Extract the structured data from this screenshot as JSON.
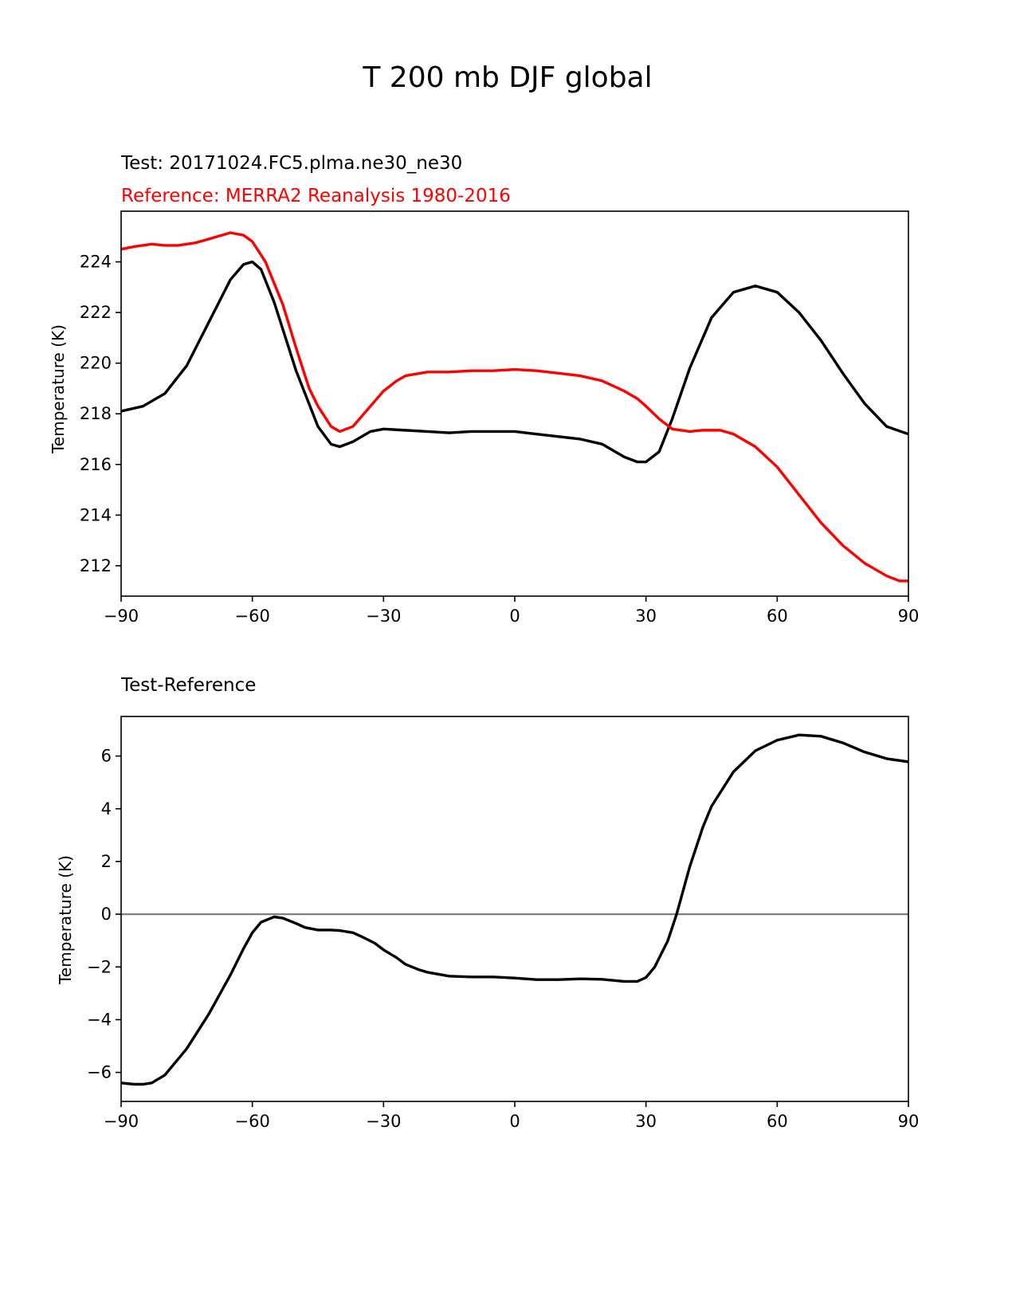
{
  "figure": {
    "title": "T 200 mb DJF global"
  },
  "colors": {
    "test": "#000000",
    "reference": "#ff0000",
    "zero_line": "#808080"
  },
  "chart_data": [
    {
      "type": "line",
      "id": "top",
      "title_test": "Test: 20171024.FC5.plma.ne30_ne30",
      "title_reference": "Reference: MERRA2 Reanalysis 1980-2016",
      "xlabel": "",
      "ylabel": "Temperature (K)",
      "xlim": [
        -90,
        90
      ],
      "ylim": [
        210.8,
        226.0
      ],
      "xticks": [
        -90,
        -60,
        -30,
        0,
        30,
        60,
        90
      ],
      "xtick_labels": [
        "−90",
        "−60",
        "−30",
        "0",
        "30",
        "60",
        "90"
      ],
      "yticks": [
        212,
        214,
        216,
        218,
        220,
        222,
        224
      ],
      "ytick_labels": [
        "212",
        "214",
        "216",
        "218",
        "220",
        "222",
        "224"
      ],
      "grid": false,
      "series": [
        {
          "name": "Test",
          "color_key": "test",
          "x": [
            -90,
            -85,
            -80,
            -75,
            -70,
            -65,
            -62,
            -60,
            -58,
            -55,
            -50,
            -45,
            -42,
            -40,
            -37,
            -33,
            -30,
            -25,
            -20,
            -15,
            -10,
            -5,
            0,
            5,
            10,
            15,
            20,
            25,
            28,
            30,
            33,
            36,
            40,
            45,
            50,
            55,
            60,
            65,
            70,
            75,
            80,
            85,
            90
          ],
          "y": [
            218.1,
            218.3,
            218.8,
            219.9,
            221.6,
            223.3,
            223.9,
            224.0,
            223.7,
            222.4,
            219.7,
            217.5,
            216.8,
            216.7,
            216.9,
            217.3,
            217.4,
            217.35,
            217.3,
            217.25,
            217.3,
            217.3,
            217.3,
            217.2,
            217.1,
            217.0,
            216.8,
            216.3,
            216.1,
            216.1,
            216.5,
            217.8,
            219.8,
            221.8,
            222.8,
            223.05,
            222.8,
            222.0,
            220.9,
            219.6,
            218.4,
            217.5,
            217.2
          ]
        },
        {
          "name": "Reference",
          "color_key": "reference",
          "x": [
            -90,
            -87,
            -83,
            -80,
            -77,
            -73,
            -70,
            -65,
            -62,
            -60,
            -57,
            -53,
            -50,
            -47,
            -45,
            -42,
            -40,
            -37,
            -35,
            -32,
            -30,
            -27,
            -25,
            -20,
            -15,
            -10,
            -5,
            0,
            5,
            10,
            15,
            20,
            25,
            28,
            30,
            33,
            36,
            40,
            43,
            47,
            50,
            55,
            60,
            65,
            70,
            75,
            80,
            85,
            88,
            90
          ],
          "y": [
            224.5,
            224.6,
            224.7,
            224.65,
            224.65,
            224.75,
            224.9,
            225.15,
            225.05,
            224.8,
            224.0,
            222.3,
            220.6,
            219.0,
            218.3,
            217.5,
            217.3,
            217.5,
            217.9,
            218.5,
            218.9,
            219.3,
            219.5,
            219.65,
            219.65,
            219.7,
            219.7,
            219.75,
            219.7,
            219.6,
            219.5,
            219.3,
            218.9,
            218.6,
            218.3,
            217.8,
            217.4,
            217.3,
            217.35,
            217.35,
            217.2,
            216.7,
            215.9,
            214.8,
            213.7,
            212.8,
            212.1,
            211.6,
            211.4,
            211.4
          ]
        }
      ]
    },
    {
      "type": "line",
      "id": "bottom",
      "title": "Test-Reference",
      "xlabel": "",
      "ylabel": "Temperature (K)",
      "xlim": [
        -90,
        90
      ],
      "ylim": [
        -7.1,
        7.5
      ],
      "xticks": [
        -90,
        -60,
        -30,
        0,
        30,
        60,
        90
      ],
      "xtick_labels": [
        "−90",
        "−60",
        "−30",
        "0",
        "30",
        "60",
        "90"
      ],
      "yticks": [
        -6,
        -4,
        -2,
        0,
        2,
        4,
        6
      ],
      "ytick_labels": [
        "−6",
        "−4",
        "−2",
        "0",
        "2",
        "4",
        "6"
      ],
      "grid": false,
      "hline": 0,
      "series": [
        {
          "name": "Test-Reference",
          "color_key": "test",
          "x": [
            -90,
            -87,
            -85,
            -83,
            -80,
            -75,
            -70,
            -65,
            -62,
            -60,
            -58,
            -55,
            -53,
            -50,
            -48,
            -45,
            -42,
            -40,
            -37,
            -35,
            -32,
            -30,
            -27,
            -25,
            -22,
            -20,
            -15,
            -10,
            -5,
            0,
            5,
            10,
            15,
            20,
            25,
            28,
            30,
            32,
            35,
            37,
            40,
            43,
            45,
            50,
            55,
            60,
            65,
            70,
            75,
            80,
            85,
            90
          ],
          "y": [
            -6.4,
            -6.45,
            -6.45,
            -6.4,
            -6.1,
            -5.1,
            -3.8,
            -2.3,
            -1.3,
            -0.7,
            -0.3,
            -0.1,
            -0.15,
            -0.35,
            -0.5,
            -0.6,
            -0.6,
            -0.62,
            -0.7,
            -0.85,
            -1.1,
            -1.35,
            -1.65,
            -1.9,
            -2.1,
            -2.2,
            -2.35,
            -2.38,
            -2.38,
            -2.42,
            -2.48,
            -2.48,
            -2.45,
            -2.47,
            -2.55,
            -2.55,
            -2.4,
            -2.0,
            -1.0,
            0.0,
            1.8,
            3.3,
            4.1,
            5.4,
            6.2,
            6.6,
            6.8,
            6.75,
            6.5,
            6.15,
            5.9,
            5.78
          ]
        }
      ]
    }
  ]
}
